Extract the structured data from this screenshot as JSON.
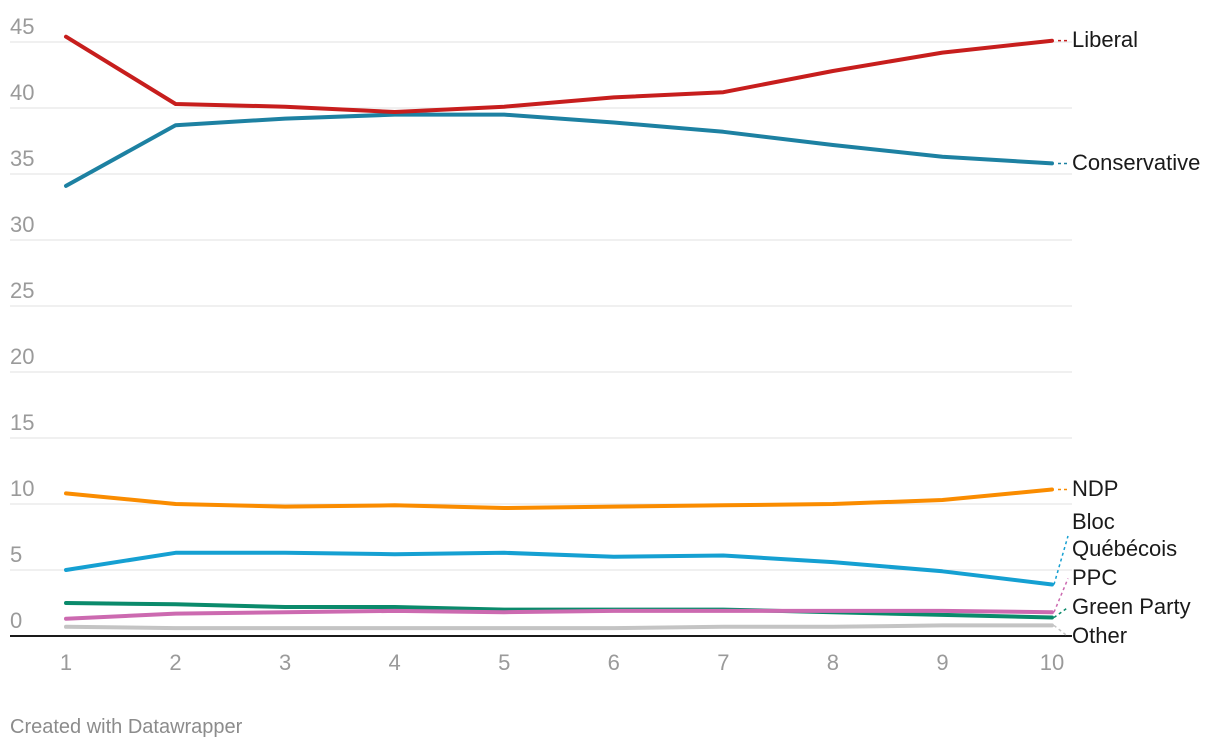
{
  "chart_data": {
    "type": "line",
    "x": [
      1,
      2,
      3,
      4,
      5,
      6,
      7,
      8,
      9,
      10
    ],
    "x_ticks": [
      "1",
      "2",
      "3",
      "4",
      "5",
      "6",
      "7",
      "8",
      "9",
      "10"
    ],
    "y_ticks": [
      "0",
      "5",
      "10",
      "15",
      "20",
      "25",
      "30",
      "35",
      "40",
      "45"
    ],
    "ylim": [
      0,
      45
    ],
    "grid": true,
    "series": [
      {
        "name": "Liberal",
        "label_lines": [
          "Liberal"
        ],
        "color": "#c71e1d",
        "values": [
          45.4,
          40.3,
          40.1,
          39.7,
          40.1,
          40.8,
          41.2,
          42.8,
          44.2,
          45.1
        ]
      },
      {
        "name": "Conservative",
        "label_lines": [
          "Conservative"
        ],
        "color": "#1d81a2",
        "values": [
          34.1,
          38.7,
          39.2,
          39.5,
          39.5,
          38.9,
          38.2,
          37.2,
          36.3,
          35.8
        ]
      },
      {
        "name": "NDP",
        "label_lines": [
          "NDP"
        ],
        "color": "#fa8c00",
        "values": [
          10.8,
          10.0,
          9.8,
          9.9,
          9.7,
          9.8,
          9.9,
          10.0,
          10.3,
          11.1
        ]
      },
      {
        "name": "Bloc Québécois",
        "label_lines": [
          "Bloc",
          "Québécois"
        ],
        "color": "#15a0d2",
        "values": [
          5.0,
          6.3,
          6.3,
          6.2,
          6.3,
          6.0,
          6.1,
          5.6,
          4.9,
          3.9
        ]
      },
      {
        "name": "PPC",
        "label_lines": [
          "PPC"
        ],
        "color": "#cc6ab0",
        "values": [
          1.3,
          1.7,
          1.8,
          1.9,
          1.8,
          1.9,
          1.9,
          1.9,
          1.9,
          1.8
        ]
      },
      {
        "name": "Green Party",
        "label_lines": [
          "Green Party"
        ],
        "color": "#0a8a6b",
        "values": [
          2.5,
          2.4,
          2.2,
          2.2,
          2.0,
          2.0,
          2.0,
          1.8,
          1.6,
          1.4
        ]
      },
      {
        "name": "Other",
        "label_lines": [
          "Other"
        ],
        "color": "#c4c4c4",
        "values": [
          0.7,
          0.6,
          0.6,
          0.6,
          0.6,
          0.6,
          0.7,
          0.7,
          0.8,
          0.8
        ]
      }
    ]
  },
  "footer": {
    "credit": "Created with Datawrapper"
  }
}
